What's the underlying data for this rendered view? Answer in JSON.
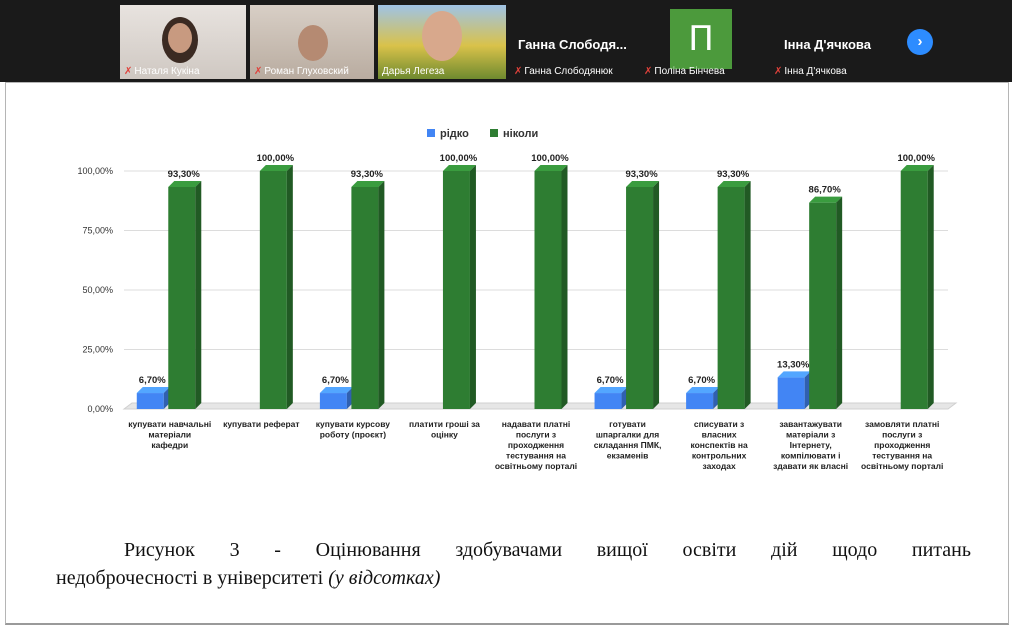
{
  "participants": [
    {
      "name": "Наталя Кукіна"
    },
    {
      "name": "Роман Глуховский"
    },
    {
      "name": "Дарья Легеза"
    },
    {
      "name": "Ганна Слободянюк",
      "display_name": "Ганна Слободя..."
    },
    {
      "name": "Поліна Бінчева",
      "initial": "П"
    },
    {
      "name": "Інна Д'ячкова",
      "display_name": "Інна Д'ячкова"
    }
  ],
  "next_label": "›",
  "chart_data": {
    "type": "bar",
    "legend_position": "top",
    "grid": true,
    "ylim": [
      0,
      100
    ],
    "yticks": [
      "0,00%",
      "25,00%",
      "50,00%",
      "75,00%",
      "100,00%"
    ],
    "categories": [
      [
        "купувати навчальні",
        "матеріали",
        "кафедри"
      ],
      [
        "купувати реферат"
      ],
      [
        "купувати курсову",
        "роботу (проєкт)"
      ],
      [
        "платити гроші за",
        "оцінку"
      ],
      [
        "надавати платні",
        "послуги з",
        "проходження",
        "тестування на",
        "освітньому порталі"
      ],
      [
        "готувати",
        "шпаргалки для",
        "складання ПМК,",
        "екзаменів"
      ],
      [
        "списувати з",
        "власних",
        "конспектів на",
        "контрольних",
        "заходах"
      ],
      [
        "завантажувати",
        "матеріали з",
        "Інтернету,",
        "компілювати і",
        "здавати як власні"
      ],
      [
        "замовляти платні",
        "послуги з",
        "проходження",
        "тестування на",
        "освітньому порталі"
      ]
    ],
    "series": [
      {
        "name": "рідко",
        "color": "#4285f4",
        "values": [
          6.7,
          null,
          6.7,
          null,
          null,
          6.7,
          6.7,
          13.3,
          null
        ],
        "labels": [
          "6,70%",
          "",
          "6,70%",
          "",
          "",
          "6,70%",
          "6,70%",
          "13,30%",
          ""
        ]
      },
      {
        "name": "ніколи",
        "color": "#2e7d32",
        "values": [
          93.3,
          100,
          93.3,
          100,
          100,
          93.3,
          93.3,
          86.7,
          100
        ],
        "labels": [
          "93,30%",
          "100,00%",
          "93,30%",
          "100,00%",
          "100,00%",
          "93,30%",
          "93,30%",
          "86,70%",
          "100,00%"
        ]
      }
    ]
  },
  "caption": {
    "line1": "Рисунок 3 - Оцінювання здобувачами вищої освіти дій щодо питань",
    "line2": "недоброчесності в університеті ",
    "line2_italic": "(у відсотках)"
  }
}
